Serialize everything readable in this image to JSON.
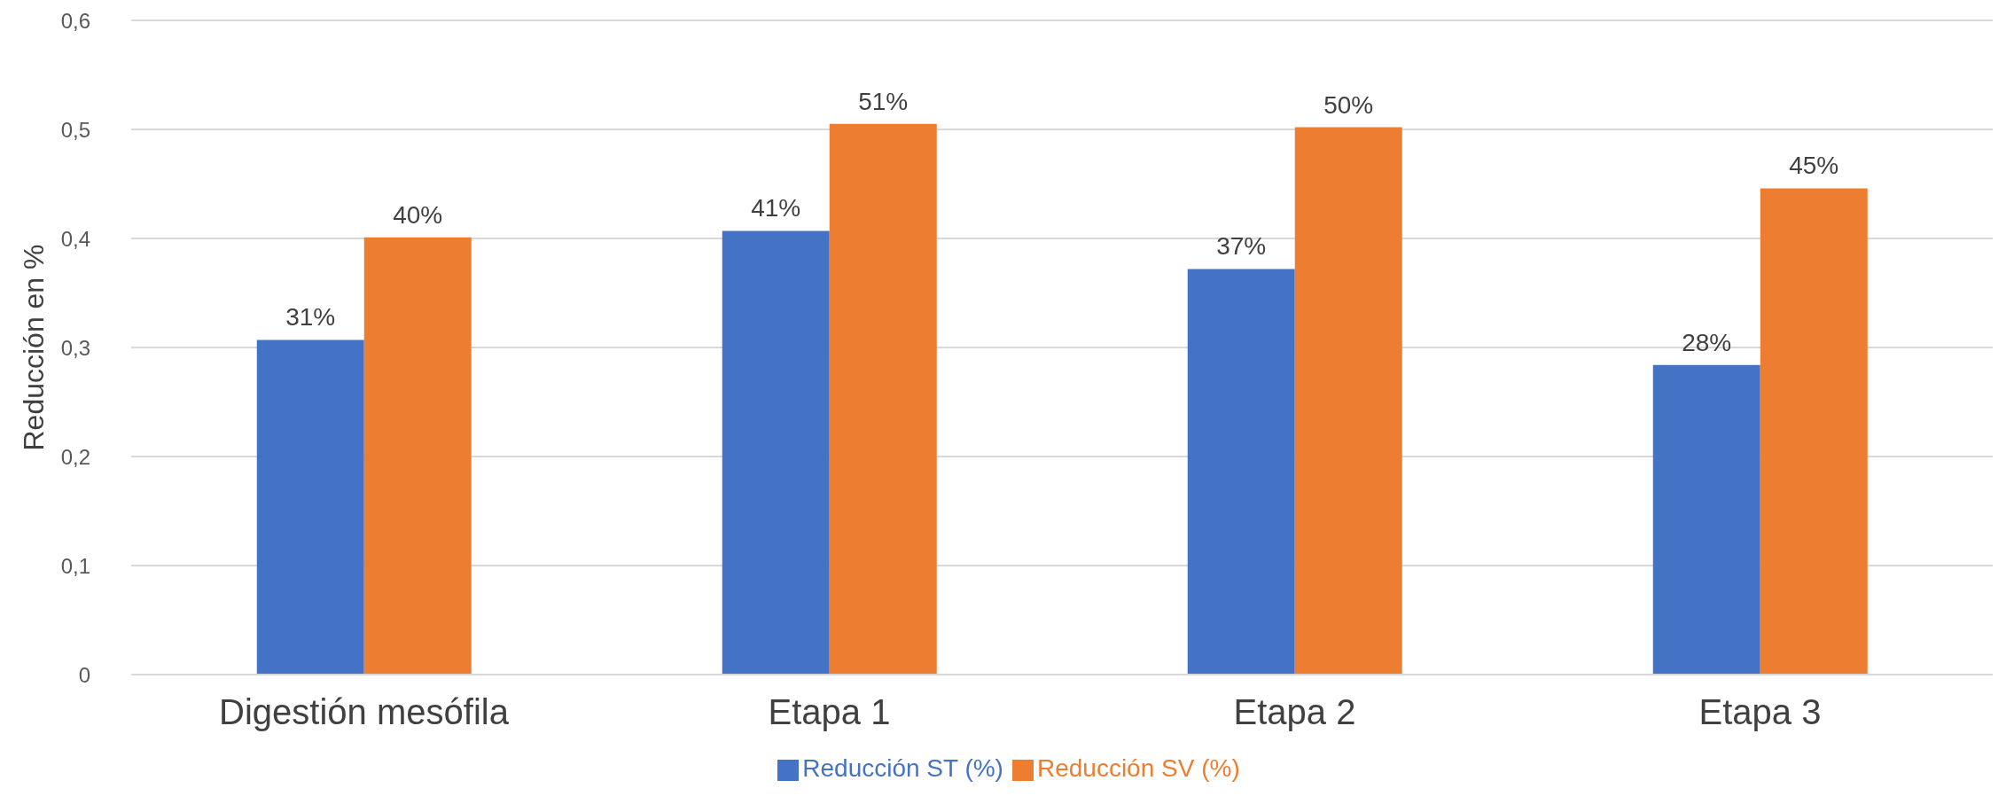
{
  "chart_data": {
    "type": "bar",
    "ylabel": "Reducción en %",
    "categories": [
      "Digestión mesófila",
      "Etapa 1",
      "Etapa 2",
      "Etapa 3"
    ],
    "series": [
      {
        "name": "Reducción ST (%)",
        "color": "#4472c4",
        "values": [
          0.307,
          0.407,
          0.372,
          0.284
        ],
        "value_labels": [
          "31%",
          "41%",
          "37%",
          "28%"
        ]
      },
      {
        "name": "Reducción SV (%)",
        "color": "#ed7d31",
        "values": [
          0.401,
          0.505,
          0.502,
          0.446
        ],
        "value_labels": [
          "40%",
          "51%",
          "50%",
          "45%"
        ]
      }
    ],
    "ylim": [
      0,
      0.6
    ],
    "yticks": [
      0,
      {
        "value": 0.1,
        "label": "0,1"
      },
      {
        "value": 0.2,
        "label": "0,2"
      },
      {
        "value": 0.3,
        "label": "0,3"
      },
      {
        "value": 0.4,
        "label": "0,4"
      },
      {
        "value": 0.5,
        "label": "0,5"
      },
      {
        "value": 0.6,
        "label": "0,6"
      }
    ],
    "grid": "y",
    "legend": "bottom"
  }
}
